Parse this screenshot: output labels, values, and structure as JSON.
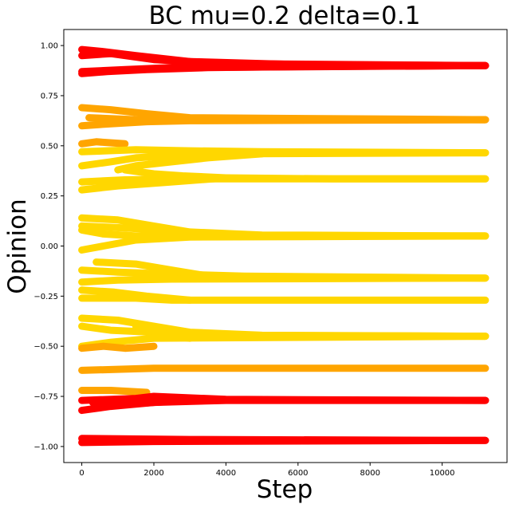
{
  "chart_data": {
    "type": "line",
    "title": "BC mu=0.2 delta=0.1",
    "xlabel": "Step",
    "ylabel": "Opinion",
    "xlim": [
      -500,
      11800
    ],
    "ylim": [
      -1.08,
      1.08
    ],
    "x_ticks": [
      0,
      2000,
      4000,
      6000,
      8000,
      10000
    ],
    "x_tick_labels": [
      "0",
      "2000",
      "4000",
      "6000",
      "8000",
      "10000"
    ],
    "y_ticks": [
      1.0,
      0.75,
      0.5,
      0.25,
      0.0,
      -0.25,
      -0.5,
      -0.75,
      -1.0
    ],
    "y_tick_labels": [
      "1.00",
      "0.75",
      "0.50",
      "0.25",
      "0.00",
      "−0.25",
      "−0.50",
      "−0.75",
      "−1.00"
    ],
    "grid": false,
    "colors": {
      "red": "#ff0000",
      "orange": "#ffa500",
      "yellow": "#ffd700"
    },
    "series": [
      {
        "color": "red",
        "points": [
          [
            0,
            0.98
          ],
          [
            600,
            0.97
          ],
          [
            1500,
            0.95
          ],
          [
            3000,
            0.92
          ],
          [
            6000,
            0.905
          ],
          [
            11200,
            0.9
          ]
        ]
      },
      {
        "color": "red",
        "points": [
          [
            0,
            0.95
          ],
          [
            800,
            0.96
          ],
          [
            2000,
            0.93
          ],
          [
            4000,
            0.91
          ],
          [
            11200,
            0.9
          ]
        ]
      },
      {
        "color": "red",
        "points": [
          [
            0,
            0.86
          ],
          [
            700,
            0.87
          ],
          [
            1800,
            0.88
          ],
          [
            3500,
            0.89
          ],
          [
            6000,
            0.895
          ],
          [
            11200,
            0.9
          ]
        ]
      },
      {
        "color": "red",
        "points": [
          [
            0,
            0.87
          ],
          [
            1200,
            0.88
          ],
          [
            2500,
            0.89
          ],
          [
            11200,
            0.9
          ]
        ]
      },
      {
        "color": "orange",
        "points": [
          [
            0,
            0.69
          ],
          [
            800,
            0.68
          ],
          [
            1800,
            0.66
          ],
          [
            3000,
            0.64
          ],
          [
            11200,
            0.63
          ]
        ]
      },
      {
        "color": "orange",
        "points": [
          [
            0,
            0.6
          ],
          [
            800,
            0.61
          ],
          [
            1800,
            0.62
          ],
          [
            3000,
            0.625
          ],
          [
            11200,
            0.63
          ]
        ]
      },
      {
        "color": "orange",
        "points": [
          [
            200,
            0.64
          ],
          [
            1500,
            0.63
          ],
          [
            11200,
            0.63
          ]
        ]
      },
      {
        "color": "orange",
        "points": [
          [
            0,
            0.51
          ],
          [
            400,
            0.52
          ],
          [
            1200,
            0.51
          ]
        ]
      },
      {
        "color": "yellow",
        "points": [
          [
            0,
            0.47
          ],
          [
            1500,
            0.48
          ],
          [
            3000,
            0.475
          ],
          [
            5000,
            0.47
          ],
          [
            11200,
            0.465
          ]
        ]
      },
      {
        "color": "yellow",
        "points": [
          [
            0,
            0.4
          ],
          [
            800,
            0.42
          ],
          [
            1500,
            0.44
          ],
          [
            2500,
            0.45
          ],
          [
            4000,
            0.46
          ],
          [
            11200,
            0.465
          ]
        ]
      },
      {
        "color": "yellow",
        "points": [
          [
            1000,
            0.38
          ],
          [
            1500,
            0.4
          ],
          [
            2500,
            0.42
          ],
          [
            3500,
            0.44
          ],
          [
            5000,
            0.46
          ]
        ]
      },
      {
        "color": "yellow",
        "points": [
          [
            0,
            0.32
          ],
          [
            1200,
            0.33
          ],
          [
            3000,
            0.335
          ],
          [
            11200,
            0.335
          ]
        ]
      },
      {
        "color": "yellow",
        "points": [
          [
            0,
            0.28
          ],
          [
            1000,
            0.3
          ],
          [
            2500,
            0.32
          ],
          [
            4000,
            0.34
          ],
          [
            7000,
            0.335
          ],
          [
            11200,
            0.335
          ]
        ]
      },
      {
        "color": "yellow",
        "points": [
          [
            1200,
            0.38
          ],
          [
            2000,
            0.36
          ],
          [
            2800,
            0.35
          ],
          [
            4000,
            0.34
          ]
        ]
      },
      {
        "color": "yellow",
        "points": [
          [
            0,
            0.14
          ],
          [
            1000,
            0.13
          ],
          [
            2000,
            0.1
          ],
          [
            3000,
            0.07
          ],
          [
            5000,
            0.055
          ],
          [
            11200,
            0.05
          ]
        ]
      },
      {
        "color": "yellow",
        "points": [
          [
            0,
            0.08
          ],
          [
            600,
            0.06
          ],
          [
            1500,
            0.05
          ],
          [
            3000,
            0.05
          ],
          [
            11200,
            0.05
          ]
        ]
      },
      {
        "color": "yellow",
        "points": [
          [
            0,
            -0.02
          ],
          [
            600,
            0.0
          ],
          [
            1500,
            0.03
          ],
          [
            3000,
            0.045
          ],
          [
            11200,
            0.05
          ]
        ]
      },
      {
        "color": "yellow",
        "points": [
          [
            0,
            0.1
          ],
          [
            1200,
            0.09
          ],
          [
            2200,
            0.08
          ],
          [
            3500,
            0.06
          ]
        ]
      },
      {
        "color": "yellow",
        "points": [
          [
            0,
            -0.12
          ],
          [
            1000,
            -0.13
          ],
          [
            2500,
            -0.14
          ],
          [
            4500,
            -0.15
          ],
          [
            11200,
            -0.16
          ]
        ]
      },
      {
        "color": "yellow",
        "points": [
          [
            0,
            -0.18
          ],
          [
            1000,
            -0.17
          ],
          [
            2500,
            -0.165
          ],
          [
            11200,
            -0.16
          ]
        ]
      },
      {
        "color": "yellow",
        "points": [
          [
            400,
            -0.08
          ],
          [
            1500,
            -0.09
          ],
          [
            2500,
            -0.12
          ],
          [
            3500,
            -0.15
          ]
        ]
      },
      {
        "color": "yellow",
        "points": [
          [
            0,
            -0.26
          ],
          [
            1500,
            -0.26
          ],
          [
            2500,
            -0.27
          ],
          [
            11200,
            -0.27
          ]
        ]
      },
      {
        "color": "yellow",
        "points": [
          [
            0,
            -0.22
          ],
          [
            900,
            -0.23
          ],
          [
            1800,
            -0.25
          ],
          [
            3000,
            -0.27
          ]
        ]
      },
      {
        "color": "yellow",
        "points": [
          [
            0,
            -0.36
          ],
          [
            1000,
            -0.37
          ],
          [
            2000,
            -0.4
          ],
          [
            3000,
            -0.43
          ],
          [
            5000,
            -0.445
          ],
          [
            11200,
            -0.45
          ]
        ]
      },
      {
        "color": "yellow",
        "points": [
          [
            0,
            -0.4
          ],
          [
            800,
            -0.42
          ],
          [
            2000,
            -0.43
          ],
          [
            3500,
            -0.445
          ],
          [
            11200,
            -0.45
          ]
        ]
      },
      {
        "color": "yellow",
        "points": [
          [
            0,
            -0.5
          ],
          [
            800,
            -0.48
          ],
          [
            2000,
            -0.46
          ],
          [
            11200,
            -0.45
          ]
        ]
      },
      {
        "color": "yellow",
        "points": [
          [
            1500,
            -0.4
          ],
          [
            2000,
            -0.42
          ],
          [
            2500,
            -0.45
          ],
          [
            3000,
            -0.46
          ]
        ]
      },
      {
        "color": "orange",
        "points": [
          [
            0,
            -0.51
          ],
          [
            600,
            -0.5
          ],
          [
            1200,
            -0.51
          ],
          [
            2000,
            -0.5
          ]
        ]
      },
      {
        "color": "orange",
        "points": [
          [
            0,
            -0.62
          ],
          [
            2000,
            -0.61
          ],
          [
            6000,
            -0.61
          ],
          [
            11200,
            -0.61
          ]
        ]
      },
      {
        "color": "orange",
        "points": [
          [
            0,
            -0.72
          ],
          [
            800,
            -0.72
          ],
          [
            1800,
            -0.73
          ]
        ]
      },
      {
        "color": "red",
        "points": [
          [
            0,
            -0.82
          ],
          [
            800,
            -0.8
          ],
          [
            2000,
            -0.78
          ],
          [
            4000,
            -0.77
          ],
          [
            11200,
            -0.77
          ]
        ]
      },
      {
        "color": "red",
        "points": [
          [
            0,
            -0.77
          ],
          [
            1500,
            -0.76
          ],
          [
            2000,
            -0.75
          ],
          [
            4000,
            -0.765
          ],
          [
            11200,
            -0.77
          ]
        ]
      },
      {
        "color": "red",
        "points": [
          [
            300,
            -0.78
          ],
          [
            1200,
            -0.79
          ],
          [
            2000,
            -0.78
          ],
          [
            3000,
            -0.77
          ]
        ]
      },
      {
        "color": "red",
        "points": [
          [
            0,
            -0.96
          ],
          [
            3000,
            -0.965
          ],
          [
            11200,
            -0.97
          ]
        ]
      },
      {
        "color": "red",
        "points": [
          [
            0,
            -0.98
          ],
          [
            2000,
            -0.975
          ],
          [
            11200,
            -0.97
          ]
        ]
      }
    ]
  }
}
